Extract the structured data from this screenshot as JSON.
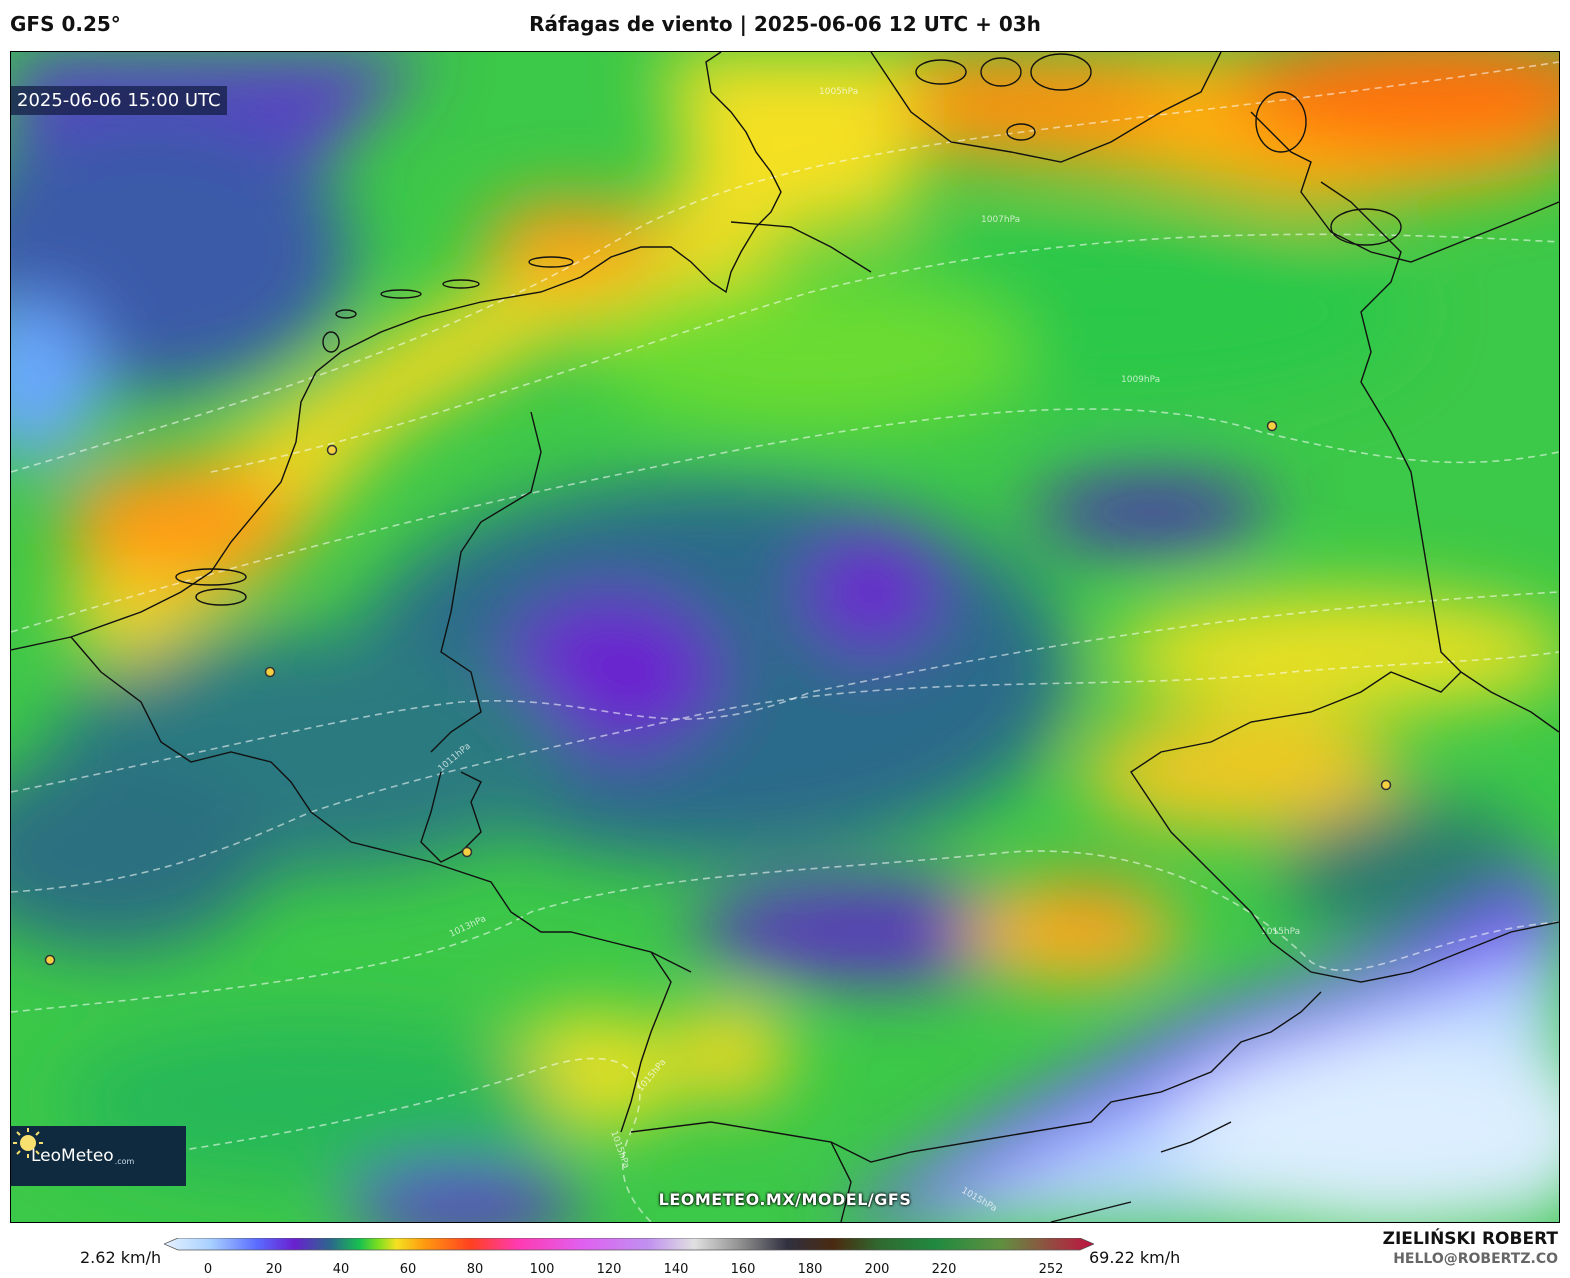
{
  "header": {
    "model": "GFS 0.25°",
    "title": "Ráfagas de viento | 2025-06-06 12 UTC + 03h"
  },
  "map": {
    "timestamp": "2025-06-06 15:00 UTC",
    "watermark": "LEOMETEO.MX/MODEL/GFS",
    "logo": {
      "name": "LeoMeteo",
      "suffix": ".com"
    },
    "isobar_labels": [
      "1005hPa",
      "1007hPa",
      "1009hPa",
      "1011hPa",
      "1013hPa",
      "1015hPa",
      "1015hPa",
      "1015hPa",
      "1015hPa"
    ]
  },
  "colorbar": {
    "min_label": "2.62 km/h",
    "max_label": "69.22 km/h",
    "ticks": [
      "0",
      "20",
      "40",
      "60",
      "80",
      "100",
      "120",
      "140",
      "160",
      "180",
      "200",
      "220",
      "252"
    ],
    "colors": [
      "#e8f2ff",
      "#a8d0ff",
      "#5a6cff",
      "#6a20d0",
      "#2a6a8a",
      "#18c050",
      "#7ade20",
      "#f5e020",
      "#ff9a10",
      "#ff4020",
      "#ff3ab0",
      "#e060f0",
      "#c090f0",
      "#e0e0e0",
      "#909090",
      "#303040",
      "#4a2a10",
      "#306a30",
      "#208a40",
      "#609040",
      "#c01040"
    ]
  },
  "credits": {
    "author": "ZIELIŃSKI ROBERT",
    "email": "HELLO@ROBERTZ.CO"
  }
}
